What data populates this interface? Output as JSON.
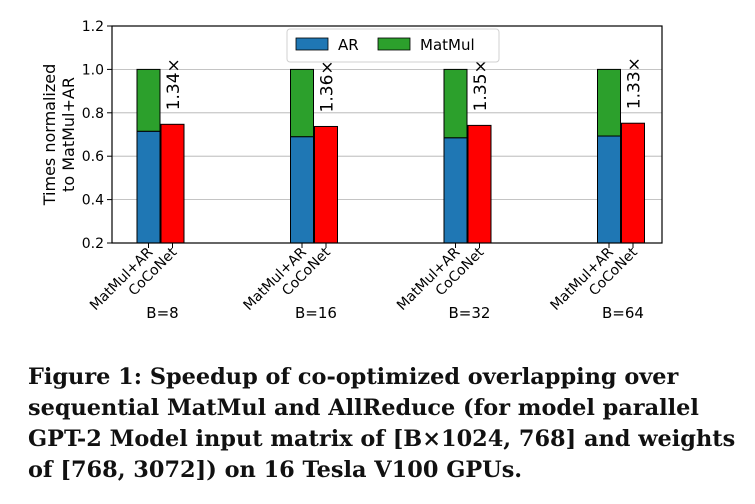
{
  "chart_data": {
    "type": "bar",
    "stacked": true,
    "ylabel": "Times normalized\nto MatMul+AR",
    "ylim": [
      0.2,
      1.2
    ],
    "yticks": [
      "0.2",
      "0.4",
      "0.6",
      "0.8",
      "1.0",
      "1.2"
    ],
    "grid": "horizontal",
    "legend_position": "top-center",
    "groups": [
      {
        "label": "B=8",
        "stack": {
          "AR": 0.715,
          "MatMul": 0.285
        },
        "coconet": 0.747,
        "speedup": "1.34×"
      },
      {
        "label": "B=16",
        "stack": {
          "AR": 0.69,
          "MatMul": 0.31
        },
        "coconet": 0.737,
        "speedup": "1.36×"
      },
      {
        "label": "B=32",
        "stack": {
          "AR": 0.685,
          "MatMul": 0.315
        },
        "coconet": 0.742,
        "speedup": "1.35×"
      },
      {
        "label": "B=64",
        "stack": {
          "AR": 0.693,
          "MatMul": 0.307
        },
        "coconet": 0.752,
        "speedup": "1.33×"
      }
    ],
    "bar_labels": [
      "MatMul+AR",
      "CoCoNet"
    ],
    "legend": [
      {
        "name": "AR",
        "color": "#1f77b4"
      },
      {
        "name": "MatMul",
        "color": "#2ca02c"
      }
    ],
    "coconet_color": "#ff0000"
  },
  "caption": "Figure 1: Speedup of co-optimized overlapping over sequential MatMul and AllReduce (for model parallel GPT-2 Model input matrix of [B×1024, 768] and weights of [768, 3072]) on 16 Tesla V100 GPUs."
}
